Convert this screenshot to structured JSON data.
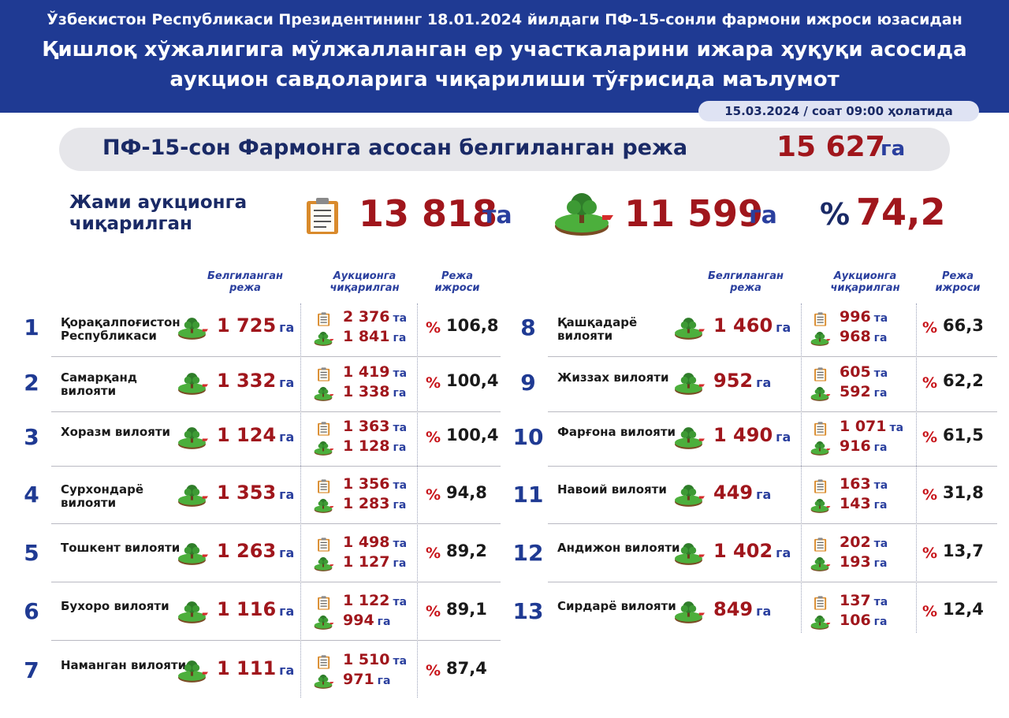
{
  "header": {
    "line1": "Ўзбекистон Республикаси Президентининг 18.01.2024 йилдаги ПФ-15-сонли фармони ижроси юзасидан",
    "line2": "Қишлоқ хўжалигига мўлжалланган ер участкаларини ижара ҳуқуқи асосида",
    "line3": "аукцион савдоларига чиқарилиши тўғрисида маълумот",
    "date": "15.03.2024 / соат 09:00 ҳолатида"
  },
  "plan": {
    "label": "ПФ-15-сон Фармонга асосан белгиланган режа",
    "value": "15 627",
    "unit": "га"
  },
  "totals": {
    "label": "Жами аукционга чиқарилган",
    "lots": "13 818",
    "lots_unit": "та",
    "area": "11 599",
    "area_unit": "га",
    "pct_sign": "%",
    "pct": "74,2"
  },
  "columns": {
    "plan": "Белгиланган режа",
    "auction": "Аукционга чиқарилган",
    "exec": "Режа ижроси"
  },
  "units": {
    "ha": "га",
    "lots": "та",
    "pct": "%"
  },
  "icons": {
    "clipboard": "clipboard-icon",
    "tree": "land-tree-icon"
  },
  "colors": {
    "header_bg": "#1f3a93",
    "value_red": "#a0161c",
    "unit_blue": "#2a3f9e",
    "pct_red": "#c8161c"
  },
  "regions": [
    {
      "num": "1",
      "name": "Қорақалпоғистон Республикаси",
      "plan": "1 725",
      "lots": "2 376",
      "area": "1 841",
      "pct": "106,8"
    },
    {
      "num": "2",
      "name": "Самарқанд вилояти",
      "plan": "1 332",
      "lots": "1 419",
      "area": "1 338",
      "pct": "100,4"
    },
    {
      "num": "3",
      "name": "Хоразм вилояти",
      "plan": "1 124",
      "lots": "1 363",
      "area": "1 128",
      "pct": "100,4"
    },
    {
      "num": "4",
      "name": "Сурхондарё вилояти",
      "plan": "1 353",
      "lots": "1 356",
      "area": "1 283",
      "pct": "94,8"
    },
    {
      "num": "5",
      "name": "Тошкент вилояти",
      "plan": "1 263",
      "lots": "1 498",
      "area": "1 127",
      "pct": "89,2"
    },
    {
      "num": "6",
      "name": "Бухоро вилояти",
      "plan": "1 116",
      "lots": "1 122",
      "area": "994",
      "pct": "89,1"
    },
    {
      "num": "7",
      "name": "Наманган вилояти",
      "plan": "1 111",
      "lots": "1 510",
      "area": "971",
      "pct": "87,4"
    },
    {
      "num": "8",
      "name": "Қашқадарё вилояти",
      "plan": "1 460",
      "lots": "996",
      "area": "968",
      "pct": "66,3"
    },
    {
      "num": "9",
      "name": "Жиззах вилояти",
      "plan": "952",
      "lots": "605",
      "area": "592",
      "pct": "62,2"
    },
    {
      "num": "10",
      "name": "Фарғона вилояти",
      "plan": "1 490",
      "lots": "1 071",
      "area": "916",
      "pct": "61,5"
    },
    {
      "num": "11",
      "name": "Навоий вилояти",
      "plan": "449",
      "lots": "163",
      "area": "143",
      "pct": "31,8"
    },
    {
      "num": "12",
      "name": "Андижон вилояти",
      "plan": "1 402",
      "lots": "202",
      "area": "193",
      "pct": "13,7"
    },
    {
      "num": "13",
      "name": "Сирдарё вилояти",
      "plan": "849",
      "lots": "137",
      "area": "106",
      "pct": "12,4"
    }
  ]
}
